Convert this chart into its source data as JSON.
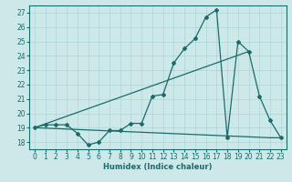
{
  "xlabel": "Humidex (Indice chaleur)",
  "ylabel": "",
  "bg_color": "#cce8e8",
  "line_color": "#1a6b6b",
  "grid_color": "#aed4d4",
  "xlim": [
    -0.5,
    23.5
  ],
  "ylim": [
    17.5,
    27.5
  ],
  "xticks": [
    0,
    1,
    2,
    3,
    4,
    5,
    6,
    7,
    8,
    9,
    10,
    11,
    12,
    13,
    14,
    15,
    16,
    17,
    18,
    19,
    20,
    21,
    22,
    23
  ],
  "yticks": [
    18,
    19,
    20,
    21,
    22,
    23,
    24,
    25,
    26,
    27
  ],
  "line1_x": [
    0,
    1,
    2,
    3,
    4,
    5,
    6,
    7,
    8,
    9,
    10,
    11,
    12,
    13,
    14,
    15,
    16,
    17,
    18,
    19,
    20,
    21,
    22,
    23
  ],
  "line1_y": [
    19.0,
    19.2,
    19.2,
    19.2,
    18.6,
    17.8,
    18.0,
    18.8,
    18.8,
    19.3,
    19.3,
    21.2,
    21.3,
    23.5,
    24.5,
    25.2,
    26.7,
    27.2,
    18.3,
    25.0,
    24.3,
    21.2,
    19.5,
    18.3
  ],
  "line2_x": [
    0,
    22,
    23
  ],
  "line2_y": [
    19.0,
    18.3,
    18.3
  ],
  "line3_x": [
    0,
    20
  ],
  "line3_y": [
    19.0,
    24.3
  ]
}
